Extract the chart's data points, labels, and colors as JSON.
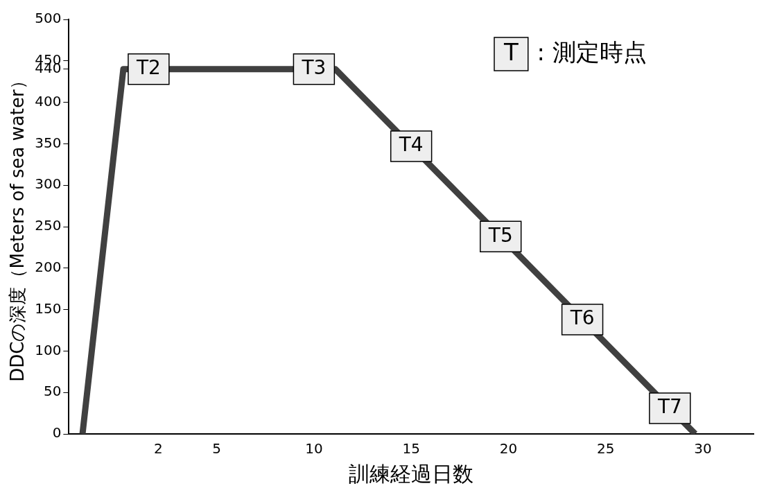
{
  "chart_data": {
    "type": "line",
    "xlabel": "訓練経過日数",
    "ylabel": "DDCの深度（Meters of sea water）",
    "x": [
      -1.9,
      0.2,
      11.1,
      29.6
    ],
    "series": [
      {
        "color": "#404040",
        "values": [
          0,
          440,
          440,
          0
        ]
      }
    ],
    "xlim": [
      -2.6,
      32.6
    ],
    "xticks": [
      2,
      5,
      10,
      15,
      20,
      25,
      30
    ],
    "ylim": [
      0,
      500
    ],
    "yticks": [
      0,
      50,
      100,
      150,
      200,
      250,
      300,
      350,
      400,
      440,
      450,
      500
    ],
    "grid": false,
    "legend": false,
    "marker": "none",
    "line_style": "solid",
    "annotations": [
      {
        "text": "T2",
        "x": 1.5,
        "y": 440
      },
      {
        "text": "T3",
        "x": 10,
        "y": 440
      },
      {
        "text": "T4",
        "x": 15,
        "y": 347
      },
      {
        "text": "T5",
        "x": 19.6,
        "y": 238
      },
      {
        "text": "T6",
        "x": 23.8,
        "y": 138
      },
      {
        "text": "T7",
        "x": 28.3,
        "y": 31
      },
      "T : 測定時点"
    ]
  }
}
